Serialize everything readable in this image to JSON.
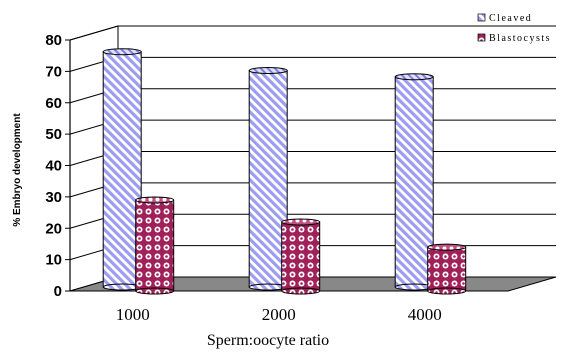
{
  "chart_data": {
    "type": "bar",
    "title": "",
    "xlabel": "Sperm:oocyte ratio",
    "ylabel": "% Embryo development",
    "categories": [
      "1000",
      "2000",
      "4000"
    ],
    "series": [
      {
        "name": "Cleaved",
        "values": [
          75,
          69,
          67
        ],
        "color": "#9c9cf0"
      },
      {
        "name": "Blastocysts",
        "values": [
          29,
          22,
          14
        ],
        "color": "#a0205a"
      }
    ],
    "ylim": [
      0,
      80
    ],
    "yticks": [
      0,
      10,
      20,
      30,
      40,
      50,
      60,
      70,
      80
    ],
    "grid": true,
    "legend_position": "top-right",
    "style": "3d"
  }
}
